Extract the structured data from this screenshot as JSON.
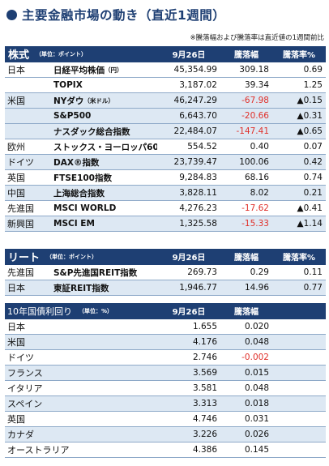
{
  "title": "主要金融市場の動き（直近1週間）",
  "note": "※騰落幅および騰落率は直近値の1週間前比",
  "stocks": {
    "section": "株式",
    "unit": "（単位：ポイント）",
    "headers": {
      "date": "9月26日",
      "change": "騰落幅",
      "rate": "騰落率%"
    },
    "rows": [
      {
        "country": "日本",
        "index": "日経平均株価",
        "sub": "（円）",
        "value": "45,354.99",
        "change": "309.18",
        "rate": "0.69",
        "neg": false,
        "band": false
      },
      {
        "country": "",
        "index": "TOPIX",
        "sub": "",
        "value": "3,187.02",
        "change": "39.34",
        "rate": "1.25",
        "neg": false,
        "band": false
      },
      {
        "country": "米国",
        "index": "NYダウ",
        "sub": "（米ドル）",
        "value": "46,247.29",
        "change": "-67.98",
        "rate": "▲0.15",
        "neg": true,
        "band": true
      },
      {
        "country": "",
        "index": "S&P500",
        "sub": "",
        "value": "6,643.70",
        "change": "-20.66",
        "rate": "▲0.31",
        "neg": true,
        "band": true
      },
      {
        "country": "",
        "index": "ナスダック総合指数",
        "sub": "",
        "value": "22,484.07",
        "change": "-147.41",
        "rate": "▲0.65",
        "neg": true,
        "band": true
      },
      {
        "country": "欧州",
        "index": "ストックス・ヨーロッパ600",
        "sub": "",
        "value": "554.52",
        "change": "0.40",
        "rate": "0.07",
        "neg": false,
        "band": false
      },
      {
        "country": "ドイツ",
        "index": "DAX®指数",
        "sub": "",
        "value": "23,739.47",
        "change": "100.06",
        "rate": "0.42",
        "neg": false,
        "band": true
      },
      {
        "country": "英国",
        "index": "FTSE100指数",
        "sub": "",
        "value": "9,284.83",
        "change": "68.16",
        "rate": "0.74",
        "neg": false,
        "band": false
      },
      {
        "country": "中国",
        "index": "上海総合指数",
        "sub": "",
        "value": "3,828.11",
        "change": "8.02",
        "rate": "0.21",
        "neg": false,
        "band": true
      },
      {
        "country": "先進国",
        "index": "MSCI WORLD",
        "sub": "",
        "value": "4,276.23",
        "change": "-17.62",
        "rate": "▲0.41",
        "neg": true,
        "band": false
      },
      {
        "country": "新興国",
        "index": "MSCI EM",
        "sub": "",
        "value": "1,325.58",
        "change": "-15.33",
        "rate": "▲1.14",
        "neg": true,
        "band": true
      }
    ]
  },
  "reit": {
    "section": "リート",
    "unit": "（単位：ポイント）",
    "headers": {
      "date": "9月26日",
      "change": "騰落幅",
      "rate": "騰落率%"
    },
    "rows": [
      {
        "country": "先進国",
        "index": "S&P先進国REIT指数",
        "value": "269.73",
        "change": "0.29",
        "rate": "0.11",
        "neg": false,
        "band": false
      },
      {
        "country": "日本",
        "index": "東証REIT指数",
        "value": "1,946.77",
        "change": "14.96",
        "rate": "0.77",
        "neg": false,
        "band": true
      }
    ]
  },
  "bonds": {
    "section": "10年国債利回り",
    "unit": "（単位：%）",
    "headers": {
      "date": "9月26日",
      "change": "騰落幅"
    },
    "rows": [
      {
        "country": "日本",
        "value": "1.655",
        "change": "0.020",
        "neg": false,
        "band": false
      },
      {
        "country": "米国",
        "value": "4.176",
        "change": "0.048",
        "neg": false,
        "band": true
      },
      {
        "country": "ドイツ",
        "value": "2.746",
        "change": "-0.002",
        "neg": true,
        "band": false
      },
      {
        "country": "フランス",
        "value": "3.569",
        "change": "0.015",
        "neg": false,
        "band": true
      },
      {
        "country": "イタリア",
        "value": "3.581",
        "change": "0.048",
        "neg": false,
        "band": false
      },
      {
        "country": "スペイン",
        "value": "3.313",
        "change": "0.018",
        "neg": false,
        "band": true
      },
      {
        "country": "英国",
        "value": "4.746",
        "change": "0.031",
        "neg": false,
        "band": false
      },
      {
        "country": "カナダ",
        "value": "3.226",
        "change": "0.026",
        "neg": false,
        "band": true
      },
      {
        "country": "オーストラリア",
        "value": "4.386",
        "change": "0.145",
        "neg": false,
        "band": false
      }
    ]
  }
}
